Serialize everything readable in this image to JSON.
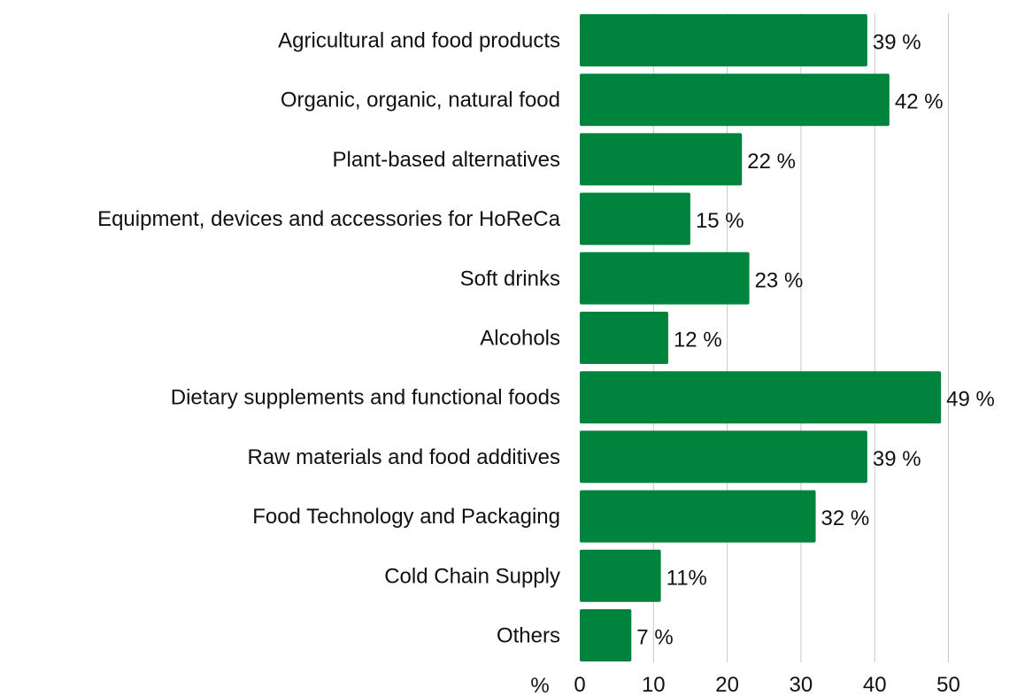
{
  "chart_data": {
    "type": "bar",
    "orientation": "horizontal",
    "categories": [
      "Agricultural and food products",
      "Organic, organic, natural food",
      "Plant-based alternatives",
      "Equipment, devices and accessories for HoReCa",
      "Soft drinks",
      "Alcohols",
      "Dietary supplements and functional foods",
      "Raw materials and food additives",
      "Food Technology and Packaging",
      "Cold Chain Supply",
      "Others"
    ],
    "values": [
      39,
      42,
      22,
      15,
      23,
      12,
      49,
      39,
      32,
      11,
      7
    ],
    "value_labels": [
      "39 %",
      "42 %",
      "22 %",
      "15 %",
      "23 %",
      "12 %",
      "49 %",
      "39 %",
      "32 %",
      "11%",
      "7 %"
    ],
    "x_ticks": [
      "0",
      "10",
      "20",
      "30",
      "40",
      "50"
    ],
    "xlabel": "%",
    "xlim": [
      0,
      50
    ],
    "grid": true,
    "legend": "none",
    "bar_color": "#00843D"
  }
}
